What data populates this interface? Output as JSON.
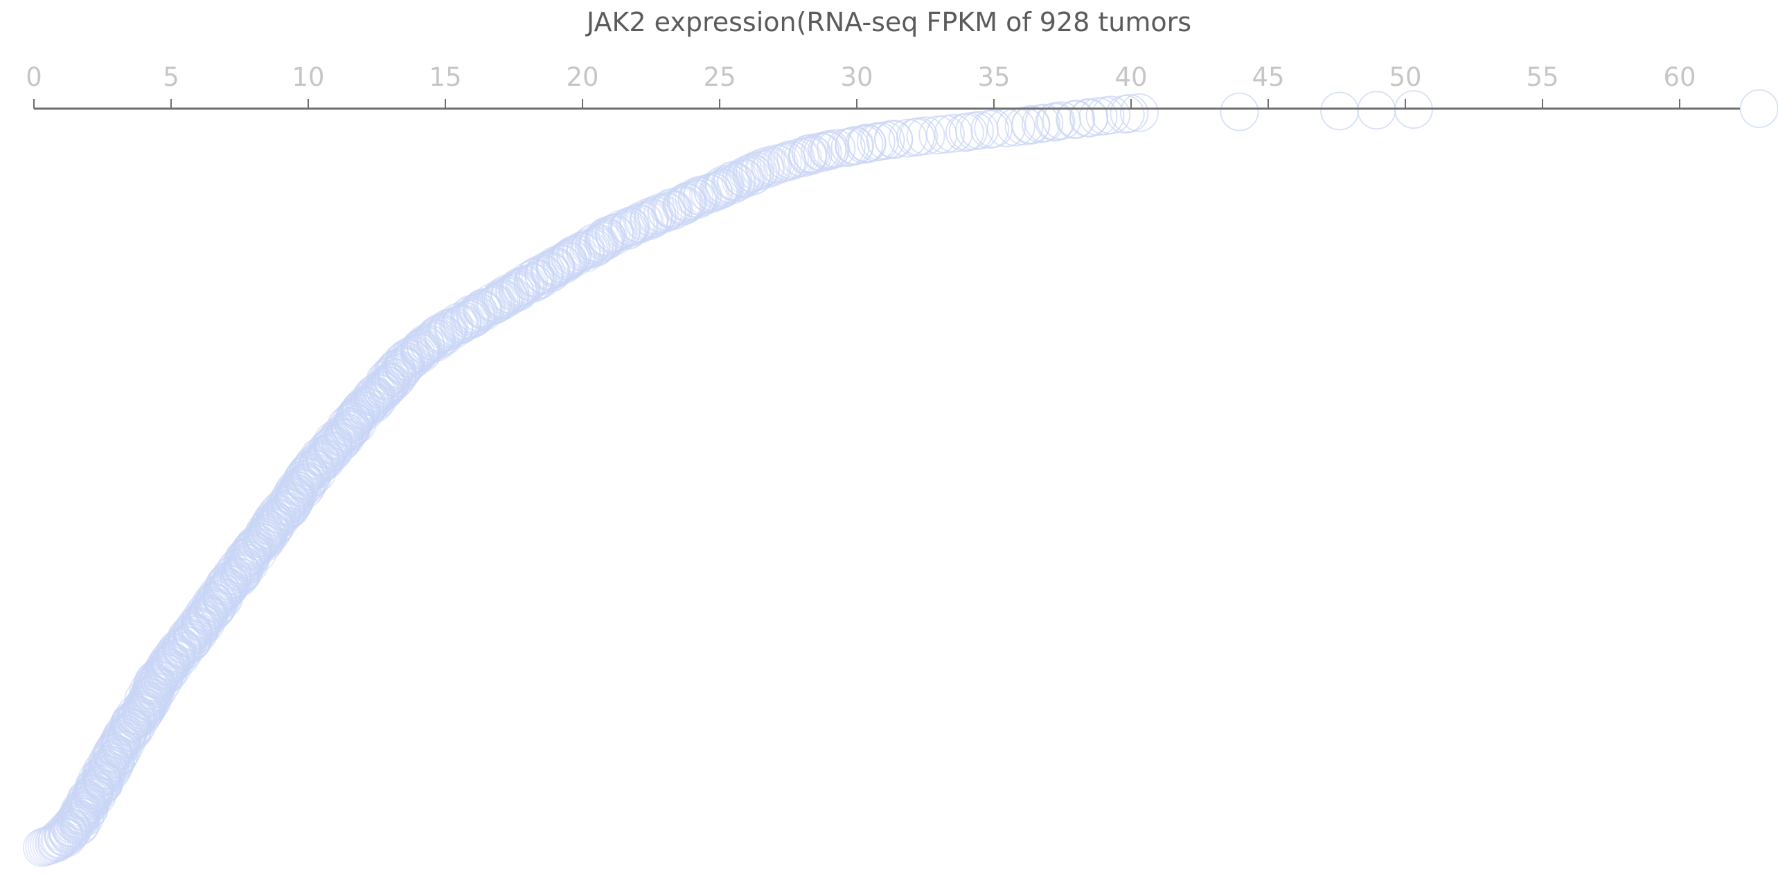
{
  "chart_data": {
    "type": "scatter",
    "title": "JAK2 expression(RNA-seq FPKM of 928 tumors",
    "xlabel": "",
    "ylabel": "",
    "xlim": [
      0,
      63
    ],
    "x_ticks": [
      0,
      5,
      10,
      15,
      20,
      25,
      30,
      35,
      40,
      45,
      50,
      55,
      60
    ],
    "y_axis_meaning": "tumor rank by JAK2 expression (0 = highest)",
    "ylim": [
      0,
      927
    ],
    "n_points": 928,
    "axis_position": "top",
    "grid": false,
    "legend": "none",
    "marker": "open-circle",
    "point_color": "#c9d6f6",
    "axis_color": "#6e6e6e",
    "anchor_points": [
      {
        "x": 62.9,
        "y": 0
      },
      {
        "x": 50.3,
        "y": 1
      },
      {
        "x": 47.6,
        "y": 3
      },
      {
        "x": 40.3,
        "y": 5
      },
      {
        "x": 38.3,
        "y": 12
      },
      {
        "x": 36.5,
        "y": 20
      },
      {
        "x": 33.8,
        "y": 30
      },
      {
        "x": 30.9,
        "y": 40
      },
      {
        "x": 28.6,
        "y": 55
      },
      {
        "x": 27.0,
        "y": 70
      },
      {
        "x": 25.0,
        "y": 100
      },
      {
        "x": 23.0,
        "y": 130
      },
      {
        "x": 21.0,
        "y": 160
      },
      {
        "x": 19.0,
        "y": 200
      },
      {
        "x": 17.0,
        "y": 240
      },
      {
        "x": 15.0,
        "y": 280
      },
      {
        "x": 13.5,
        "y": 320
      },
      {
        "x": 12.0,
        "y": 380
      },
      {
        "x": 10.5,
        "y": 440
      },
      {
        "x": 9.0,
        "y": 510
      },
      {
        "x": 7.5,
        "y": 580
      },
      {
        "x": 6.0,
        "y": 650
      },
      {
        "x": 4.5,
        "y": 720
      },
      {
        "x": 3.5,
        "y": 780
      },
      {
        "x": 2.5,
        "y": 840
      },
      {
        "x": 1.5,
        "y": 900
      },
      {
        "x": 0.9,
        "y": 920
      },
      {
        "x": 0.3,
        "y": 927
      }
    ]
  }
}
